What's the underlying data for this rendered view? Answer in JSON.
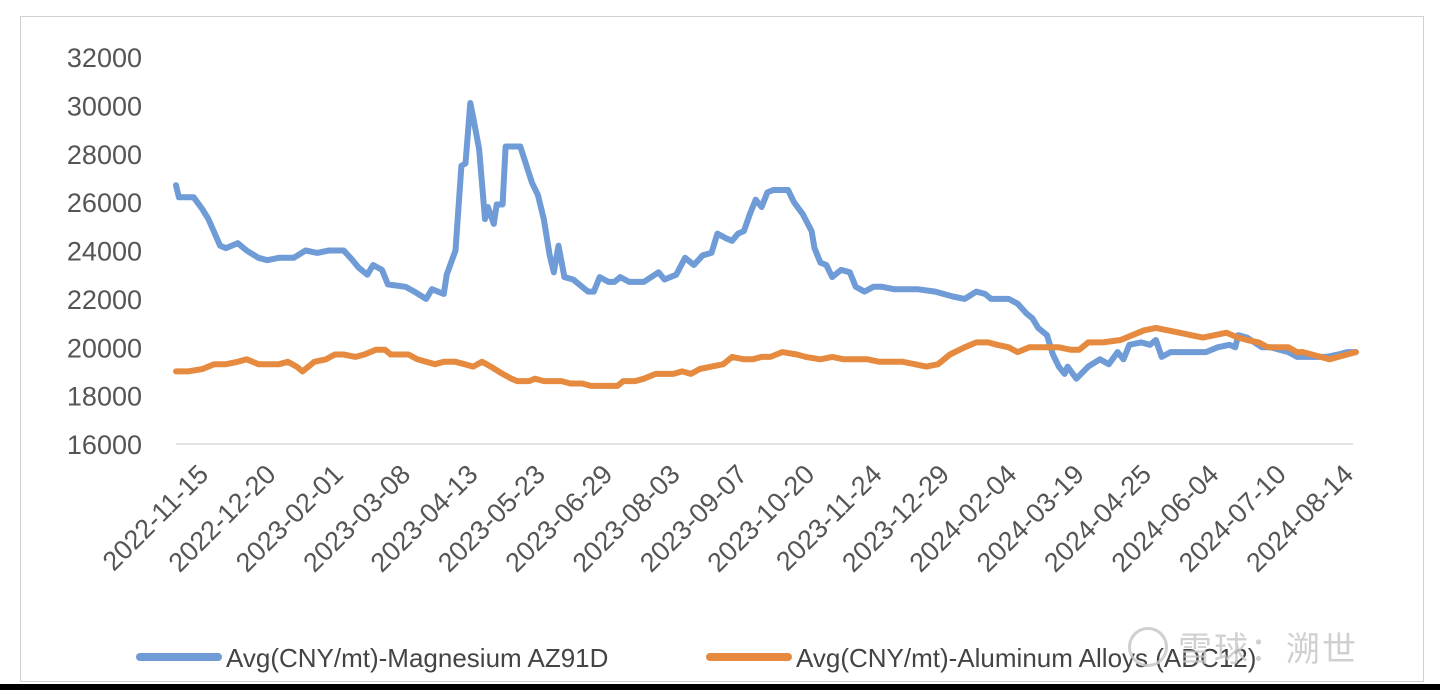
{
  "chart_data": {
    "type": "line",
    "title": "",
    "xlabel": "",
    "ylabel": "",
    "ylim": [
      16000,
      32000
    ],
    "yticks": [
      16000,
      18000,
      20000,
      22000,
      24000,
      26000,
      28000,
      30000,
      32000
    ],
    "categories": [
      "2022-11-15",
      "2022-12-20",
      "2023-02-01",
      "2023-03-08",
      "2023-04-13",
      "2023-05-23",
      "2023-06-29",
      "2023-08-03",
      "2023-09-07",
      "2023-10-20",
      "2023-11-24",
      "2023-12-29",
      "2024-02-04",
      "2024-03-19",
      "2024-04-25",
      "2024-06-04",
      "2024-07-10",
      "2024-08-14"
    ],
    "legend_position": "bottom",
    "series": [
      {
        "name": "Avg(CNY/mt)-Magnesium AZ91D",
        "color": "#6F9BD6",
        "points": [
          [
            0,
            26700
          ],
          [
            0.05,
            26200
          ],
          [
            0.3,
            26200
          ],
          [
            0.45,
            25700
          ],
          [
            0.55,
            25300
          ],
          [
            0.75,
            24200
          ],
          [
            0.85,
            24100
          ],
          [
            1.05,
            24300
          ],
          [
            1.2,
            24000
          ],
          [
            1.4,
            23700
          ],
          [
            1.55,
            23600
          ],
          [
            1.75,
            23700
          ],
          [
            2.0,
            23700
          ],
          [
            2.2,
            24000
          ],
          [
            2.4,
            23900
          ],
          [
            2.6,
            24000
          ],
          [
            2.85,
            24000
          ],
          [
            3.0,
            23600
          ],
          [
            3.1,
            23300
          ],
          [
            3.25,
            23000
          ],
          [
            3.35,
            23400
          ],
          [
            3.5,
            23200
          ],
          [
            3.6,
            22600
          ],
          [
            3.9,
            22500
          ],
          [
            4.05,
            22300
          ],
          [
            4.25,
            22000
          ],
          [
            4.35,
            22400
          ],
          [
            4.55,
            22200
          ],
          [
            4.6,
            23000
          ],
          [
            4.75,
            24000
          ],
          [
            4.85,
            27500
          ],
          [
            4.92,
            27600
          ],
          [
            5.0,
            30100
          ],
          [
            5.05,
            29500
          ],
          [
            5.15,
            28200
          ],
          [
            5.25,
            25300
          ],
          [
            5.3,
            25800
          ],
          [
            5.4,
            25100
          ],
          [
            5.45,
            25900
          ],
          [
            5.55,
            25900
          ],
          [
            5.6,
            28300
          ],
          [
            5.85,
            28300
          ],
          [
            6.05,
            26800
          ],
          [
            6.15,
            26300
          ],
          [
            6.25,
            25300
          ],
          [
            6.35,
            23800
          ],
          [
            6.42,
            23100
          ],
          [
            6.5,
            24200
          ],
          [
            6.6,
            22900
          ],
          [
            6.75,
            22800
          ],
          [
            6.9,
            22500
          ],
          [
            7.0,
            22300
          ],
          [
            7.1,
            22300
          ],
          [
            7.2,
            22900
          ],
          [
            7.35,
            22700
          ],
          [
            7.45,
            22700
          ],
          [
            7.55,
            22900
          ],
          [
            7.7,
            22700
          ],
          [
            7.95,
            22700
          ],
          [
            8.2,
            23100
          ],
          [
            8.3,
            22800
          ],
          [
            8.5,
            23000
          ],
          [
            8.65,
            23700
          ],
          [
            8.8,
            23400
          ],
          [
            8.95,
            23800
          ],
          [
            9.1,
            23900
          ],
          [
            9.2,
            24700
          ],
          [
            9.35,
            24500
          ],
          [
            9.45,
            24400
          ],
          [
            9.55,
            24700
          ],
          [
            9.65,
            24800
          ],
          [
            9.75,
            25500
          ],
          [
            9.85,
            26100
          ],
          [
            9.95,
            25800
          ],
          [
            10.05,
            26400
          ],
          [
            10.15,
            26500
          ],
          [
            10.4,
            26500
          ],
          [
            10.5,
            26000
          ],
          [
            10.65,
            25500
          ],
          [
            10.8,
            24800
          ],
          [
            10.85,
            24100
          ],
          [
            10.95,
            23500
          ],
          [
            11.05,
            23400
          ],
          [
            11.15,
            22900
          ],
          [
            11.3,
            23200
          ],
          [
            11.45,
            23100
          ],
          [
            11.55,
            22500
          ],
          [
            11.7,
            22300
          ],
          [
            11.85,
            22500
          ],
          [
            12.0,
            22500
          ],
          [
            12.2,
            22400
          ],
          [
            12.6,
            22400
          ],
          [
            12.9,
            22300
          ],
          [
            13.2,
            22100
          ],
          [
            13.4,
            22000
          ],
          [
            13.6,
            22300
          ],
          [
            13.75,
            22200
          ],
          [
            13.85,
            22000
          ],
          [
            14.15,
            22000
          ],
          [
            14.3,
            21800
          ],
          [
            14.45,
            21400
          ],
          [
            14.55,
            21200
          ],
          [
            14.65,
            20800
          ],
          [
            14.8,
            20500
          ],
          [
            14.9,
            19700
          ],
          [
            15.0,
            19200
          ],
          [
            15.1,
            18900
          ],
          [
            15.15,
            19200
          ],
          [
            15.3,
            18700
          ],
          [
            15.5,
            19200
          ],
          [
            15.7,
            19500
          ],
          [
            15.85,
            19300
          ],
          [
            16.0,
            19800
          ],
          [
            16.1,
            19500
          ],
          [
            16.2,
            20100
          ],
          [
            16.4,
            20200
          ],
          [
            16.55,
            20100
          ],
          [
            16.65,
            20300
          ],
          [
            16.75,
            19600
          ],
          [
            16.9,
            19800
          ],
          [
            17.15,
            19800
          ],
          [
            17.5,
            19800
          ],
          [
            17.7,
            20000
          ],
          [
            17.9,
            20100
          ],
          [
            18.0,
            20000
          ],
          [
            18.05,
            20500
          ],
          [
            18.2,
            20400
          ],
          [
            18.45,
            20000
          ],
          [
            18.6,
            20000
          ],
          [
            18.75,
            19900
          ],
          [
            18.9,
            19800
          ],
          [
            19.05,
            19600
          ],
          [
            19.3,
            19600
          ],
          [
            19.55,
            19600
          ],
          [
            19.75,
            19700
          ],
          [
            19.9,
            19800
          ],
          [
            20.05,
            19800
          ]
        ]
      },
      {
        "name": "Avg(CNY/mt)-Aluminum Alloys (ADC12)",
        "color": "#E58A3E",
        "points": [
          [
            0,
            19000
          ],
          [
            0.2,
            19000
          ],
          [
            0.45,
            19100
          ],
          [
            0.65,
            19300
          ],
          [
            0.85,
            19300
          ],
          [
            1.05,
            19400
          ],
          [
            1.2,
            19500
          ],
          [
            1.4,
            19300
          ],
          [
            1.55,
            19300
          ],
          [
            1.75,
            19300
          ],
          [
            1.9,
            19400
          ],
          [
            2.05,
            19200
          ],
          [
            2.15,
            19000
          ],
          [
            2.35,
            19400
          ],
          [
            2.55,
            19500
          ],
          [
            2.7,
            19700
          ],
          [
            2.85,
            19700
          ],
          [
            3.05,
            19600
          ],
          [
            3.2,
            19700
          ],
          [
            3.4,
            19900
          ],
          [
            3.55,
            19900
          ],
          [
            3.65,
            19700
          ],
          [
            3.95,
            19700
          ],
          [
            4.1,
            19500
          ],
          [
            4.25,
            19400
          ],
          [
            4.4,
            19300
          ],
          [
            4.55,
            19400
          ],
          [
            4.75,
            19400
          ],
          [
            4.9,
            19300
          ],
          [
            5.05,
            19200
          ],
          [
            5.2,
            19400
          ],
          [
            5.35,
            19200
          ],
          [
            5.55,
            18900
          ],
          [
            5.7,
            18700
          ],
          [
            5.8,
            18600
          ],
          [
            6.0,
            18600
          ],
          [
            6.1,
            18700
          ],
          [
            6.25,
            18600
          ],
          [
            6.55,
            18600
          ],
          [
            6.7,
            18500
          ],
          [
            6.9,
            18500
          ],
          [
            7.05,
            18400
          ],
          [
            7.3,
            18400
          ],
          [
            7.5,
            18400
          ],
          [
            7.6,
            18600
          ],
          [
            7.8,
            18600
          ],
          [
            7.95,
            18700
          ],
          [
            8.15,
            18900
          ],
          [
            8.45,
            18900
          ],
          [
            8.6,
            19000
          ],
          [
            8.75,
            18900
          ],
          [
            8.9,
            19100
          ],
          [
            9.1,
            19200
          ],
          [
            9.3,
            19300
          ],
          [
            9.45,
            19600
          ],
          [
            9.65,
            19500
          ],
          [
            9.8,
            19500
          ],
          [
            9.95,
            19600
          ],
          [
            10.1,
            19600
          ],
          [
            10.3,
            19800
          ],
          [
            10.55,
            19700
          ],
          [
            10.7,
            19600
          ],
          [
            10.95,
            19500
          ],
          [
            11.15,
            19600
          ],
          [
            11.35,
            19500
          ],
          [
            11.55,
            19500
          ],
          [
            11.75,
            19500
          ],
          [
            11.95,
            19400
          ],
          [
            12.35,
            19400
          ],
          [
            12.55,
            19300
          ],
          [
            12.75,
            19200
          ],
          [
            12.95,
            19300
          ],
          [
            13.15,
            19700
          ],
          [
            13.4,
            20000
          ],
          [
            13.6,
            20200
          ],
          [
            13.8,
            20200
          ],
          [
            13.95,
            20100
          ],
          [
            14.15,
            20000
          ],
          [
            14.3,
            19800
          ],
          [
            14.5,
            20000
          ],
          [
            14.8,
            20000
          ],
          [
            15.0,
            20000
          ],
          [
            15.2,
            19900
          ],
          [
            15.35,
            19900
          ],
          [
            15.5,
            20200
          ],
          [
            15.75,
            20200
          ],
          [
            16.05,
            20300
          ],
          [
            16.25,
            20500
          ],
          [
            16.45,
            20700
          ],
          [
            16.65,
            20800
          ],
          [
            16.85,
            20700
          ],
          [
            17.05,
            20600
          ],
          [
            17.25,
            20500
          ],
          [
            17.45,
            20400
          ],
          [
            17.65,
            20500
          ],
          [
            17.85,
            20600
          ],
          [
            17.95,
            20500
          ],
          [
            18.05,
            20400
          ],
          [
            18.2,
            20300
          ],
          [
            18.4,
            20200
          ],
          [
            18.55,
            20000
          ],
          [
            18.75,
            20000
          ],
          [
            18.9,
            20000
          ],
          [
            19.05,
            19800
          ],
          [
            19.15,
            19800
          ],
          [
            19.3,
            19700
          ],
          [
            19.45,
            19600
          ],
          [
            19.6,
            19500
          ],
          [
            19.75,
            19600
          ],
          [
            19.9,
            19700
          ],
          [
            20.05,
            19800
          ]
        ]
      }
    ]
  },
  "watermark": {
    "text": "雪球：溯世"
  }
}
